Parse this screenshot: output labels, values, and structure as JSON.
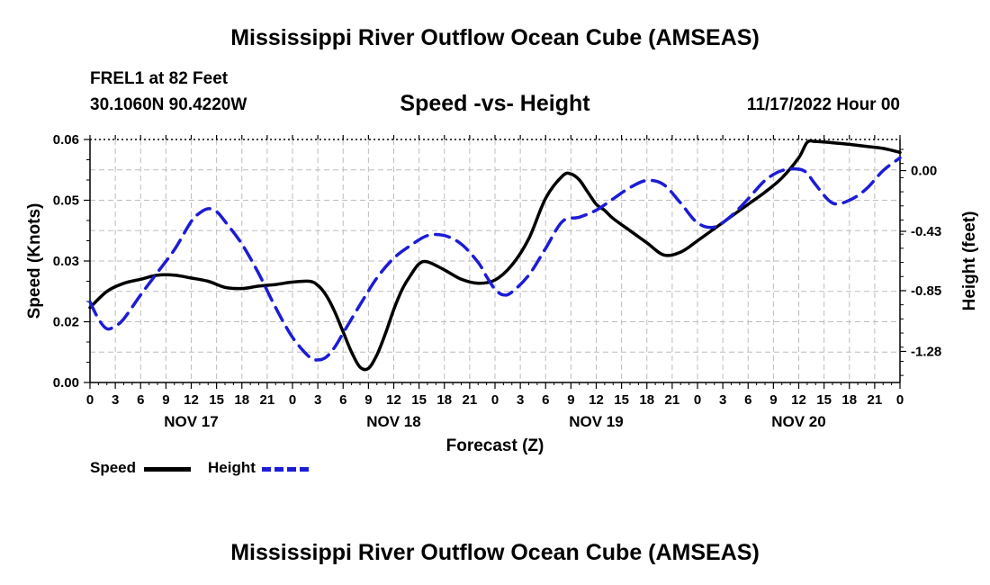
{
  "header": {
    "title": "Mississippi River Outflow Ocean Cube (AMSEAS)",
    "station": "FREL1 at 82 Feet",
    "coords": "30.1060N  90.4220W",
    "subtitle": "Speed -vs- Height",
    "datetime": "11/17/2022 Hour 00"
  },
  "footer": {
    "title": "Mississippi River Outflow Ocean Cube (AMSEAS)"
  },
  "legend": {
    "speed_label": "Speed",
    "height_label": "Height"
  },
  "colors": {
    "speed": "#000000",
    "height": "#1c1cd6",
    "grid": "#bdbdbd"
  },
  "chart_data": {
    "type": "line",
    "title": "Speed -vs- Height",
    "xlabel": "Forecast (Z)",
    "ylabel": "Speed (Knots)",
    "y2label": "Height (feet)",
    "xlim": [
      0,
      96
    ],
    "ylim": [
      0,
      0.06
    ],
    "y2lim": [
      -1.5,
      0.22
    ],
    "x_ticks": [
      0,
      3,
      6,
      9,
      12,
      15,
      18,
      21,
      24,
      27,
      30,
      33,
      36,
      39,
      42,
      45,
      48,
      51,
      54,
      57,
      60,
      63,
      66,
      69,
      72,
      75,
      78,
      81,
      84,
      87,
      90,
      93,
      96
    ],
    "x_tick_labels": [
      "0",
      "3",
      "6",
      "9",
      "12",
      "15",
      "18",
      "21",
      "0",
      "3",
      "6",
      "9",
      "12",
      "15",
      "18",
      "21",
      "0",
      "3",
      "6",
      "9",
      "12",
      "15",
      "18",
      "21",
      "0",
      "3",
      "6",
      "9",
      "12",
      "15",
      "18",
      "21",
      "0"
    ],
    "day_labels": [
      {
        "x": 12,
        "label": "NOV 17"
      },
      {
        "x": 36,
        "label": "NOV 18"
      },
      {
        "x": 60,
        "label": "NOV 19"
      },
      {
        "x": 84,
        "label": "NOV 20"
      }
    ],
    "y_ticks": [
      0,
      0.015,
      0.03,
      0.045,
      0.06
    ],
    "y_tick_labels": [
      "0.00",
      "0.02",
      "0.03",
      "0.05",
      "0.06"
    ],
    "y2_ticks": [
      0.0,
      -0.43,
      -0.85,
      -1.28
    ],
    "y2_tick_labels": [
      "0.00",
      "-0.43",
      "-0.85",
      "-1.28"
    ],
    "series": [
      {
        "name": "Speed",
        "axis": "left",
        "style": "solid",
        "x": [
          0,
          2,
          4,
          6,
          8,
          10,
          12,
          14,
          16,
          18,
          20,
          22,
          24,
          26,
          27,
          28,
          29,
          30,
          31,
          32,
          33,
          34,
          35,
          36,
          37,
          38,
          39,
          40,
          42,
          44,
          46,
          48,
          50,
          52,
          54,
          56,
          57,
          58,
          59,
          60,
          61,
          62,
          64,
          66,
          68,
          70,
          72,
          74,
          76,
          78,
          80,
          82,
          84,
          85,
          86,
          87,
          88,
          90,
          92,
          94,
          96
        ],
        "values": [
          0.0185,
          0.0225,
          0.0245,
          0.0255,
          0.0265,
          0.0265,
          0.0258,
          0.025,
          0.0235,
          0.0232,
          0.0238,
          0.0242,
          0.0248,
          0.025,
          0.024,
          0.0215,
          0.0175,
          0.0125,
          0.0075,
          0.0038,
          0.0035,
          0.0068,
          0.012,
          0.018,
          0.023,
          0.0265,
          0.0293,
          0.0298,
          0.0278,
          0.0255,
          0.0245,
          0.0253,
          0.029,
          0.0355,
          0.0455,
          0.051,
          0.0515,
          0.05,
          0.047,
          0.044,
          0.0425,
          0.0405,
          0.0375,
          0.0345,
          0.0315,
          0.0322,
          0.035,
          0.038,
          0.041,
          0.044,
          0.047,
          0.0505,
          0.0555,
          0.0593,
          0.0595,
          0.0594,
          0.0592,
          0.0588,
          0.0583,
          0.0578,
          0.0568
        ]
      },
      {
        "name": "Height",
        "axis": "right",
        "style": "dashed",
        "x": [
          0,
          1,
          2,
          3,
          4,
          6,
          8,
          10,
          12,
          13,
          14,
          15,
          16,
          18,
          20,
          22,
          24,
          26,
          27,
          28,
          29,
          30,
          32,
          34,
          36,
          38,
          40,
          42,
          44,
          46,
          47,
          48,
          49,
          50,
          52,
          54,
          56,
          58,
          60,
          62,
          64,
          66,
          68,
          70,
          72,
          74,
          76,
          78,
          80,
          82,
          84,
          85,
          86,
          88,
          90,
          92,
          94,
          96
        ],
        "values": [
          -0.93,
          -1.05,
          -1.12,
          -1.1,
          -1.05,
          -0.88,
          -0.72,
          -0.56,
          -0.36,
          -0.3,
          -0.27,
          -0.29,
          -0.36,
          -0.52,
          -0.73,
          -0.97,
          -1.18,
          -1.32,
          -1.34,
          -1.32,
          -1.25,
          -1.15,
          -0.95,
          -0.76,
          -0.62,
          -0.53,
          -0.46,
          -0.46,
          -0.52,
          -0.65,
          -0.75,
          -0.84,
          -0.88,
          -0.86,
          -0.74,
          -0.55,
          -0.36,
          -0.33,
          -0.28,
          -0.2,
          -0.12,
          -0.07,
          -0.1,
          -0.23,
          -0.37,
          -0.4,
          -0.32,
          -0.2,
          -0.07,
          0.0,
          0.01,
          -0.02,
          -0.1,
          -0.23,
          -0.21,
          -0.13,
          0.0,
          0.09
        ]
      }
    ]
  }
}
